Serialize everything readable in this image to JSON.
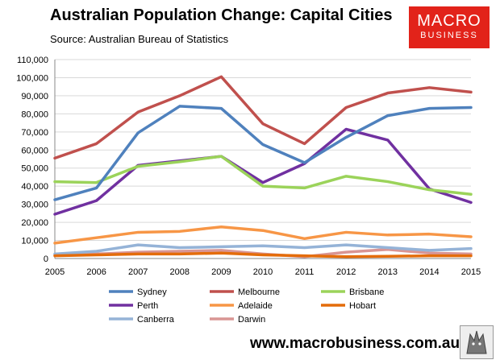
{
  "header": {
    "title": "Australian Population Change: Capital Cities",
    "subtitle": "Source: Australian Bureau of Statistics"
  },
  "logo": {
    "line1": "MACRO",
    "line2": "BUSINESS"
  },
  "footer": {
    "website": "www.macrobusiness.com.au",
    "emblem": "wolf-emblem-icon"
  },
  "colors": {
    "Sydney": "#4f81bd",
    "Melbourne": "#c0504d",
    "Brisbane": "#9bd35a",
    "Perth": "#7030a0",
    "Adelaide": "#f79646",
    "Hobart": "#e46c0a",
    "Canberra": "#95b3d7",
    "Darwin": "#d99594",
    "logo": "#e2231a"
  },
  "chart_data": {
    "type": "line",
    "title": "Australian Population Change: Capital Cities",
    "xlabel": "",
    "ylabel": "",
    "categories": [
      "2005",
      "2006",
      "2007",
      "2008",
      "2009",
      "2010",
      "2011",
      "2012",
      "2013",
      "2014",
      "2015"
    ],
    "ylim": [
      0,
      110000
    ],
    "yticks": [
      0,
      10000,
      20000,
      30000,
      40000,
      50000,
      60000,
      70000,
      80000,
      90000,
      100000,
      110000
    ],
    "ytick_labels": [
      "0",
      "10,000",
      "20,000",
      "30,000",
      "40,000",
      "50,000",
      "60,000",
      "70,000",
      "80,000",
      "90,000",
      "100,000",
      "110,000"
    ],
    "legend_position": "bottom",
    "series": [
      {
        "name": "Sydney",
        "values": [
          32500,
          39000,
          69500,
          84200,
          83000,
          63000,
          53000,
          67000,
          79000,
          83000,
          83500
        ]
      },
      {
        "name": "Melbourne",
        "values": [
          55500,
          63500,
          81000,
          90000,
          100500,
          74500,
          63500,
          83500,
          91500,
          94500,
          92000
        ]
      },
      {
        "name": "Brisbane",
        "values": [
          42500,
          42000,
          51000,
          53500,
          56500,
          40000,
          39000,
          45500,
          42500,
          38000,
          35500
        ]
      },
      {
        "name": "Perth",
        "values": [
          24500,
          32000,
          51500,
          54000,
          56500,
          42000,
          52500,
          71500,
          65500,
          38500,
          31000
        ]
      },
      {
        "name": "Adelaide",
        "values": [
          8500,
          11500,
          14500,
          15000,
          17500,
          15500,
          11000,
          14500,
          13000,
          13500,
          12000
        ]
      },
      {
        "name": "Hobart",
        "values": [
          1500,
          2000,
          2500,
          2500,
          3000,
          2000,
          1500,
          1000,
          1200,
          1500,
          1500
        ]
      },
      {
        "name": "Canberra",
        "values": [
          2500,
          4000,
          7500,
          6000,
          6500,
          7000,
          6000,
          7500,
          6000,
          4500,
          5500
        ]
      },
      {
        "name": "Darwin",
        "values": [
          2000,
          2500,
          3500,
          4000,
          4500,
          2500,
          1000,
          3500,
          5000,
          3000,
          2500
        ]
      }
    ]
  }
}
